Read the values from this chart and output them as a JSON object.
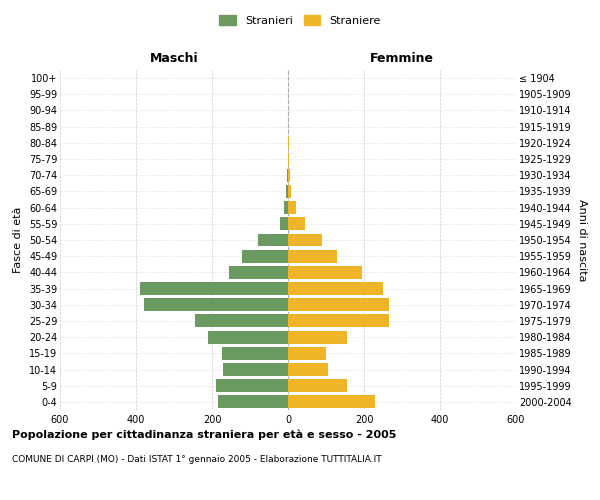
{
  "age_groups": [
    "100+",
    "95-99",
    "90-94",
    "85-89",
    "80-84",
    "75-79",
    "70-74",
    "65-69",
    "60-64",
    "55-59",
    "50-54",
    "45-49",
    "40-44",
    "35-39",
    "30-34",
    "25-29",
    "20-24",
    "15-19",
    "10-14",
    "5-9",
    "0-4"
  ],
  "birth_years": [
    "≤ 1904",
    "1905-1909",
    "1910-1914",
    "1915-1919",
    "1920-1924",
    "1925-1929",
    "1930-1934",
    "1935-1939",
    "1940-1944",
    "1945-1949",
    "1950-1954",
    "1955-1959",
    "1960-1964",
    "1965-1969",
    "1970-1974",
    "1975-1979",
    "1980-1984",
    "1985-1989",
    "1990-1994",
    "1995-1999",
    "2000-2004"
  ],
  "maschi": [
    0,
    0,
    0,
    0,
    1,
    1,
    3,
    4,
    10,
    20,
    80,
    120,
    155,
    390,
    380,
    245,
    210,
    175,
    170,
    190,
    185
  ],
  "femmine": [
    0,
    0,
    1,
    1,
    2,
    3,
    5,
    7,
    20,
    45,
    90,
    130,
    195,
    250,
    265,
    265,
    155,
    100,
    105,
    155,
    230
  ],
  "male_color": "#6a9a5f",
  "female_color": "#f0b429",
  "background_color": "#ffffff",
  "grid_color": "#cccccc",
  "title": "Popolazione per cittadinanza straniera per età e sesso - 2005",
  "subtitle": "COMUNE DI CARPI (MO) - Dati ISTAT 1° gennaio 2005 - Elaborazione TUTTITALIA.IT",
  "left_label": "Maschi",
  "right_label": "Femmine",
  "y_left_label": "Fasce di età",
  "y_right_label": "Anni di nascita",
  "legend_male": "Stranieri",
  "legend_female": "Straniere",
  "xlim": 600,
  "bar_height": 0.8
}
